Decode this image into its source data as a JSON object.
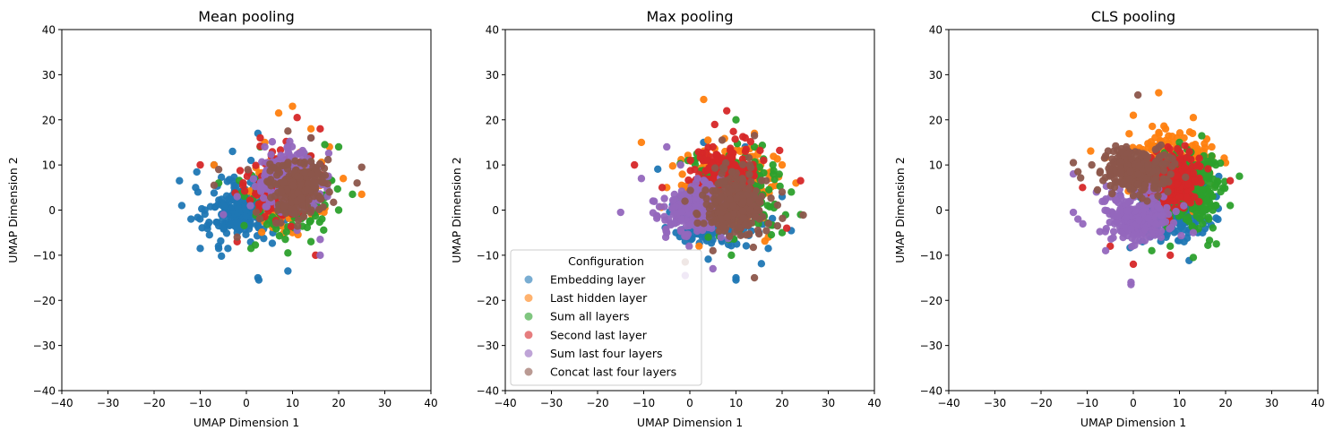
{
  "figure": {
    "legend_title": "Configuration"
  },
  "chart_data": [
    {
      "type": "scatter",
      "title": "Mean pooling",
      "xlabel": "UMAP Dimension 1",
      "ylabel": "UMAP Dimension 2",
      "xlim": [
        -40,
        40
      ],
      "ylim": [
        -40,
        40
      ],
      "xticks": [
        "−40",
        "−30",
        "−20",
        "−10",
        "0",
        "10",
        "20",
        "30",
        "40"
      ],
      "yticks": [
        "−40",
        "−30",
        "−20",
        "−10",
        "0",
        "10",
        "20",
        "30",
        "40"
      ],
      "grid": false,
      "legend": false,
      "series": [
        {
          "name": "Embedding layer",
          "color": "#1f77b4",
          "center": [
            -1,
            0
          ],
          "spread": [
            3.5,
            3.2
          ],
          "outliers": [
            [
              -14.5,
              6.5
            ],
            [
              -14,
              1
            ],
            [
              -11,
              5
            ],
            [
              -10.5,
              4
            ],
            [
              -9,
              0
            ],
            [
              -10,
              -8.5
            ],
            [
              -8,
              -5.5
            ],
            [
              -6,
              -8.5
            ],
            [
              -4,
              -8.5
            ],
            [
              -3,
              13
            ],
            [
              2.5,
              -15
            ],
            [
              2.7,
              -15.5
            ],
            [
              2.5,
              17
            ],
            [
              9,
              -13.5
            ],
            [
              -12,
              -2
            ],
            [
              -7,
              10
            ],
            [
              1,
              11
            ],
            [
              -2,
              -5
            ]
          ]
        },
        {
          "name": "Last hidden layer",
          "color": "#ff7f0e",
          "center": [
            9,
            4
          ],
          "spread": [
            3.5,
            3.5
          ],
          "outliers": [
            [
              7,
              21.5
            ],
            [
              10,
              23
            ],
            [
              25,
              3.5
            ],
            [
              10,
              -5
            ],
            [
              -7,
              10
            ],
            [
              18,
              14
            ],
            [
              14,
              18
            ],
            [
              4,
              15
            ],
            [
              21,
              7
            ]
          ]
        },
        {
          "name": "Sum all layers",
          "color": "#2ca02c",
          "center": [
            10,
            3.5
          ],
          "spread": [
            4,
            3.5
          ],
          "outliers": [
            [
              20,
              14
            ],
            [
              23,
              3.5
            ],
            [
              14,
              -7
            ],
            [
              1,
              -8.5
            ],
            [
              17,
              14.5
            ],
            [
              9,
              -9.5
            ],
            [
              20,
              0
            ],
            [
              -6,
              6
            ],
            [
              3,
              14
            ]
          ]
        },
        {
          "name": "Second last layer",
          "color": "#d62728",
          "center": [
            8,
            5
          ],
          "spread": [
            3.5,
            3
          ],
          "outliers": [
            [
              11,
              20.5
            ],
            [
              16,
              18
            ],
            [
              -10,
              10
            ],
            [
              -2,
              -7
            ],
            [
              3,
              16
            ],
            [
              15,
              -10
            ],
            [
              14,
              12
            ]
          ]
        },
        {
          "name": "Sum last four layers",
          "color": "#9467bd",
          "center": [
            9,
            6.5
          ],
          "spread": [
            3,
            3
          ],
          "outliers": [
            [
              -5,
              -1
            ],
            [
              16,
              -6.5
            ],
            [
              16,
              -10
            ],
            [
              11,
              -4.5
            ],
            [
              14,
              16
            ],
            [
              4,
              14
            ],
            [
              -2,
              3
            ]
          ]
        },
        {
          "name": "Concat last four layers",
          "color": "#8c564b",
          "center": [
            10.5,
            5
          ],
          "spread": [
            3,
            3
          ],
          "outliers": [
            [
              9,
              17.5
            ],
            [
              24,
              6
            ],
            [
              25,
              9.5
            ],
            [
              -2,
              -6
            ],
            [
              -6,
              9
            ],
            [
              -7,
              5.5
            ],
            [
              14,
              16
            ],
            [
              18,
              4
            ]
          ]
        }
      ]
    },
    {
      "type": "scatter",
      "title": "Max pooling",
      "xlabel": "UMAP Dimension 1",
      "ylabel": "UMAP Dimension 2",
      "xlim": [
        -40,
        40
      ],
      "ylim": [
        -40,
        40
      ],
      "xticks": [
        "−40",
        "−30",
        "−20",
        "−10",
        "0",
        "10",
        "20",
        "30",
        "40"
      ],
      "yticks": [
        "−40",
        "−30",
        "−20",
        "−10",
        "0",
        "10",
        "20",
        "30",
        "40"
      ],
      "grid": false,
      "legend": true,
      "legend_position": "lower-left",
      "series": [
        {
          "name": "Embedding layer",
          "color": "#1f77b4",
          "center": [
            6,
            -1.5
          ],
          "spread": [
            4.5,
            3.5
          ],
          "outliers": [
            [
              10,
              -15.5
            ],
            [
              10,
              -15
            ],
            [
              3,
              15
            ],
            [
              20,
              3
            ],
            [
              17,
              -8.5
            ],
            [
              -3,
              -5
            ],
            [
              15,
              -5
            ],
            [
              12,
              14
            ]
          ]
        },
        {
          "name": "Last hidden layer",
          "color": "#ff7f0e",
          "center": [
            8,
            6
          ],
          "spread": [
            4.5,
            4
          ],
          "outliers": [
            [
              3,
              24.5
            ],
            [
              -10.5,
              15
            ],
            [
              14,
              17
            ],
            [
              23,
              6
            ],
            [
              17,
              -6
            ],
            [
              -5,
              5
            ],
            [
              20,
              10
            ],
            [
              2,
              -8
            ]
          ]
        },
        {
          "name": "Sum all layers",
          "color": "#2ca02c",
          "center": [
            10,
            4
          ],
          "spread": [
            4.5,
            4
          ],
          "outliers": [
            [
              10,
              20
            ],
            [
              22,
              4
            ],
            [
              24,
              -1
            ],
            [
              14,
              14
            ],
            [
              18,
              10
            ],
            [
              1,
              11
            ],
            [
              4,
              -6
            ],
            [
              20,
              -5
            ],
            [
              9,
              -10
            ],
            [
              16,
              -1
            ]
          ]
        },
        {
          "name": "Second last layer",
          "color": "#d62728",
          "center": [
            8,
            8
          ],
          "spread": [
            3,
            3
          ],
          "outliers": [
            [
              8,
              22
            ],
            [
              -12,
              10
            ],
            [
              24,
              6.5
            ],
            [
              16,
              11
            ],
            [
              12,
              16
            ],
            [
              11,
              -4
            ],
            [
              -6,
              5
            ],
            [
              5,
              14
            ],
            [
              21,
              -4
            ]
          ]
        },
        {
          "name": "Sum last four layers",
          "color": "#9467bd",
          "center": [
            1,
            0
          ],
          "spread": [
            3.5,
            2.5
          ],
          "outliers": [
            [
              -15,
              -0.5
            ],
            [
              -10.5,
              7
            ],
            [
              -5,
              14
            ],
            [
              -5,
              -5
            ],
            [
              -1,
              -14.5
            ],
            [
              5,
              -13
            ],
            [
              -8,
              2
            ],
            [
              12,
              -2
            ],
            [
              -2,
              10
            ]
          ]
        },
        {
          "name": "Concat last four layers",
          "color": "#8c564b",
          "center": [
            10,
            1
          ],
          "spread": [
            3.5,
            3.5
          ],
          "outliers": [
            [
              7,
              15.5
            ],
            [
              14,
              16.5
            ],
            [
              14,
              -15
            ],
            [
              -1,
              -11.5
            ],
            [
              19,
              -3.5
            ],
            [
              13,
              10
            ],
            [
              5,
              -9
            ],
            [
              20,
              4
            ]
          ]
        }
      ]
    },
    {
      "type": "scatter",
      "title": "CLS pooling",
      "xlabel": "UMAP Dimension 1",
      "ylabel": "UMAP Dimension 2",
      "xlim": [
        -40,
        40
      ],
      "ylim": [
        -40,
        40
      ],
      "xticks": [
        "−40",
        "−30",
        "−20",
        "−10",
        "0",
        "10",
        "20",
        "30",
        "40"
      ],
      "yticks": [
        "−40",
        "−30",
        "−20",
        "−10",
        "0",
        "10",
        "20",
        "30",
        "40"
      ],
      "grid": false,
      "legend": false,
      "series": [
        {
          "name": "Embedding layer",
          "color": "#1f77b4",
          "center": [
            8,
            0
          ],
          "spread": [
            4,
            3
          ],
          "outliers": [
            [
              14,
              -5
            ],
            [
              2,
              -7
            ],
            [
              18,
              3
            ],
            [
              11,
              -7
            ],
            [
              15,
              5
            ]
          ]
        },
        {
          "name": "Last hidden layer",
          "color": "#ff7f0e",
          "center": [
            8,
            10
          ],
          "spread": [
            4,
            3.5
          ],
          "outliers": [
            [
              5.5,
              26
            ],
            [
              7,
              18
            ],
            [
              13,
              20.5
            ],
            [
              20,
              10.5
            ],
            [
              17,
              14
            ],
            [
              0,
              21
            ],
            [
              11,
              16
            ]
          ]
        },
        {
          "name": "Sum all layers",
          "color": "#2ca02c",
          "center": [
            12,
            5
          ],
          "spread": [
            3.5,
            4
          ],
          "outliers": [
            [
              23,
              7.5
            ],
            [
              18,
              -7.5
            ],
            [
              13,
              -10.5
            ],
            [
              8,
              -8
            ],
            [
              21,
              1
            ],
            [
              17,
              12
            ],
            [
              4,
              -9
            ],
            [
              15,
              -3
            ],
            [
              10,
              15
            ]
          ]
        },
        {
          "name": "Second last layer",
          "color": "#d62728",
          "center": [
            8,
            7
          ],
          "spread": [
            3,
            3
          ],
          "outliers": [
            [
              -11,
              5
            ],
            [
              0,
              -12
            ],
            [
              21,
              6.5
            ],
            [
              8,
              -10
            ],
            [
              14,
              10
            ],
            [
              -5,
              -8
            ],
            [
              5,
              13
            ]
          ]
        },
        {
          "name": "Sum last four layers",
          "color": "#9467bd",
          "center": [
            1,
            -1.5
          ],
          "spread": [
            3.5,
            2.5
          ],
          "outliers": [
            [
              -13,
              8
            ],
            [
              -13,
              -0.5
            ],
            [
              -12,
              -2
            ],
            [
              -6,
              -9
            ],
            [
              -0.5,
              -16
            ],
            [
              -0.5,
              -16.5
            ],
            [
              13,
              -5
            ],
            [
              -8,
              4
            ],
            [
              6,
              -6
            ]
          ]
        },
        {
          "name": "Concat last four layers",
          "color": "#8c564b",
          "center": [
            0.5,
            9
          ],
          "spread": [
            3.5,
            2.5
          ],
          "outliers": [
            [
              -13,
              10.5
            ],
            [
              -12,
              8.5
            ],
            [
              1,
              25.5
            ],
            [
              -6,
              12
            ],
            [
              6,
              12
            ],
            [
              -9,
              10
            ],
            [
              3,
              2
            ]
          ]
        }
      ]
    }
  ]
}
